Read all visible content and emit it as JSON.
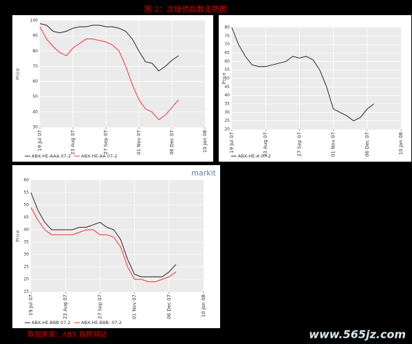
{
  "title": "图 2：次级债指数走势图",
  "source": "数据来源：ABX 指数网站",
  "watermark": "www.565jz.com",
  "chart_data": [
    {
      "type": "line",
      "y_label": "Price",
      "grid": true,
      "x": [
        "2007-07-19",
        "2007-07-26",
        "2007-08-02",
        "2007-08-09",
        "2007-08-16",
        "2007-08-23",
        "2007-08-30",
        "2007-09-06",
        "2007-09-13",
        "2007-09-20",
        "2007-09-27",
        "2007-10-04",
        "2007-10-11",
        "2007-10-18",
        "2007-10-25",
        "2007-11-01",
        "2007-11-08",
        "2007-11-15",
        "2007-11-22",
        "2007-11-29",
        "2007-12-06",
        "2007-12-13"
      ],
      "xlim": [
        "2007-07-19",
        "2008-01-10"
      ],
      "xticks": [
        {
          "value": "2007-07-19",
          "label": "19 Jul 07"
        },
        {
          "value": "2007-08-23",
          "label": "23 Aug 07"
        },
        {
          "value": "2007-09-27",
          "label": "27 Sep 07"
        },
        {
          "value": "2007-11-01",
          "label": "01 Nov 07"
        },
        {
          "value": "2007-12-06",
          "label": "06 Dec 07"
        },
        {
          "value": "2008-01-10",
          "label": "10 Jan 08"
        }
      ],
      "ylim": [
        30,
        100
      ],
      "yticks": [
        30,
        40,
        50,
        60,
        70,
        80,
        90,
        100
      ],
      "series": [
        {
          "name": "ABX-HE-AAA 07-2",
          "color": "#222222",
          "values": [
            98,
            97,
            93,
            92,
            93,
            95,
            96,
            96,
            97,
            97,
            96,
            96,
            95,
            93,
            88,
            80,
            73,
            72,
            67,
            70,
            74,
            77
          ]
        },
        {
          "name": "ABX-HE-AA 07-2",
          "color": "#ff2a2a",
          "values": [
            96,
            88,
            83,
            79,
            77,
            82,
            85,
            88,
            88,
            87,
            86,
            84,
            80,
            70,
            58,
            48,
            42,
            40,
            35,
            38,
            43,
            48
          ]
        }
      ]
    },
    {
      "type": "line",
      "y_label": "Price",
      "grid": true,
      "x": [
        "2007-07-19",
        "2007-07-26",
        "2007-08-02",
        "2007-08-09",
        "2007-08-16",
        "2007-08-23",
        "2007-08-30",
        "2007-09-06",
        "2007-09-13",
        "2007-09-20",
        "2007-09-27",
        "2007-10-04",
        "2007-10-11",
        "2007-10-18",
        "2007-10-25",
        "2007-11-01",
        "2007-11-08",
        "2007-11-15",
        "2007-11-22",
        "2007-11-29",
        "2007-12-06",
        "2007-12-13"
      ],
      "xlim": [
        "2007-07-19",
        "2008-01-10"
      ],
      "xticks": [
        {
          "value": "2007-07-19",
          "label": "19 Jul 07"
        },
        {
          "value": "2007-08-23",
          "label": "23 Aug 07"
        },
        {
          "value": "2007-09-27",
          "label": "27 Sep 07"
        },
        {
          "value": "2007-11-01",
          "label": "01 Nov 07"
        },
        {
          "value": "2007-12-06",
          "label": "06 Dec 07"
        },
        {
          "value": "2008-01-10",
          "label": "10 Jan 08"
        }
      ],
      "ylim": [
        20,
        80
      ],
      "yticks": [
        20,
        25,
        30,
        35,
        40,
        45,
        50,
        55,
        60,
        65,
        70,
        75,
        80
      ],
      "series": [
        {
          "name": "ABX-HE-A 07-2",
          "color": "#222222",
          "values": [
            80,
            70,
            63,
            58,
            57,
            57,
            58,
            59,
            60,
            63,
            62,
            63,
            61,
            55,
            45,
            32,
            30,
            28,
            25,
            27,
            32,
            35
          ]
        }
      ]
    },
    {
      "type": "line",
      "y_label": "Price",
      "grid": true,
      "logo": "markit",
      "x": [
        "2007-07-19",
        "2007-07-26",
        "2007-08-02",
        "2007-08-09",
        "2007-08-16",
        "2007-08-23",
        "2007-08-30",
        "2007-09-06",
        "2007-09-13",
        "2007-09-20",
        "2007-09-27",
        "2007-10-04",
        "2007-10-11",
        "2007-10-18",
        "2007-10-25",
        "2007-11-01",
        "2007-11-08",
        "2007-11-15",
        "2007-11-22",
        "2007-11-29",
        "2007-12-06",
        "2007-12-13"
      ],
      "xlim": [
        "2007-07-19",
        "2008-01-10"
      ],
      "xticks": [
        {
          "value": "2007-07-19",
          "label": "19 Jul 07"
        },
        {
          "value": "2007-08-23",
          "label": "23 Aug 07"
        },
        {
          "value": "2007-09-27",
          "label": "27 Sep 07"
        },
        {
          "value": "2007-11-01",
          "label": "01 Nov 07"
        },
        {
          "value": "2007-12-06",
          "label": "06 Dec 07"
        },
        {
          "value": "2008-01-10",
          "label": "10 Jan 08"
        }
      ],
      "ylim": [
        15,
        60
      ],
      "yticks": [
        15,
        20,
        25,
        30,
        35,
        40,
        45,
        50,
        55,
        60
      ],
      "series": [
        {
          "name": "ABX-HE-BBB 07-2",
          "color": "#222222",
          "values": [
            55,
            48,
            43,
            40,
            40,
            40,
            40,
            41,
            41,
            42,
            43,
            41,
            40,
            36,
            28,
            22,
            21,
            21,
            21,
            21,
            23,
            26
          ]
        },
        {
          "name": "ABX-HE-BBB- 07-2",
          "color": "#ff2a2a",
          "values": [
            49,
            44,
            40,
            38,
            38,
            38,
            38,
            39,
            40,
            40,
            38,
            38,
            37,
            33,
            25,
            20,
            20,
            19,
            19,
            20,
            21,
            23
          ]
        }
      ]
    }
  ]
}
